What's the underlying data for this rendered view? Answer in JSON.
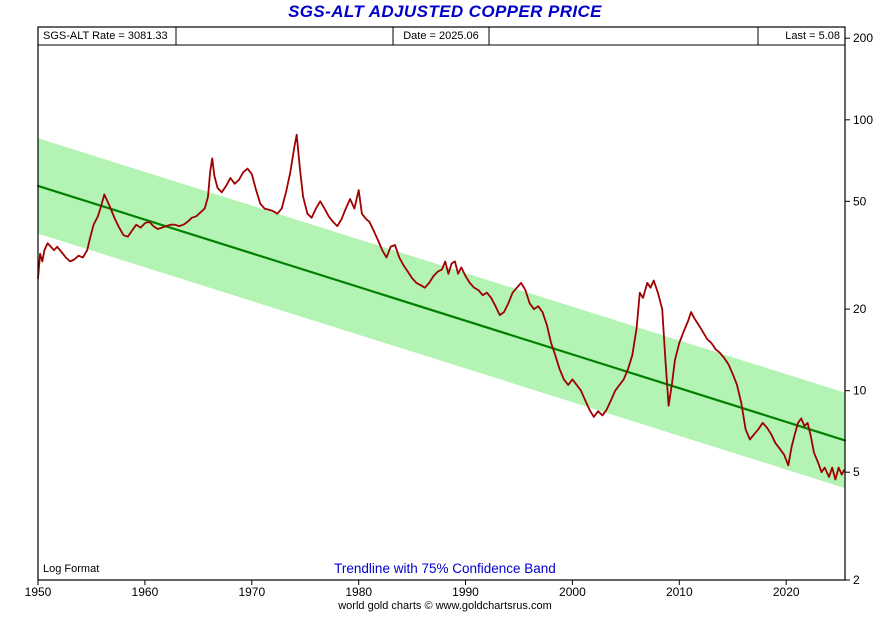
{
  "title": "SGS-ALT ADJUSTED COPPER PRICE",
  "header": {
    "left": "SGS-ALT Rate = 3081.33",
    "center": "Date = 2025.06",
    "right": "Last = 5.08"
  },
  "labels": {
    "log_format": "Log Format",
    "trendline_caption": "Trendline with 75% Confidence Band"
  },
  "footer": {
    "note": "world gold charts © www.goldchartsrus.com"
  },
  "colors": {
    "title": "#0000cc",
    "caption": "#0000cc",
    "price": "#a00000",
    "trend": "#008000",
    "band": "#b3f3b3",
    "axis": "#000000"
  },
  "chart_data": {
    "type": "line",
    "title": "SGS-ALT ADJUSTED COPPER PRICE",
    "xlabel": "",
    "ylabel": "",
    "y_scale": "log",
    "grid": false,
    "xlim": [
      1950,
      2025.5
    ],
    "ylim": [
      2,
      220
    ],
    "x_ticks": [
      1950,
      1960,
      1970,
      1980,
      1990,
      2000,
      2010,
      2020
    ],
    "y_ticks": [
      2,
      5,
      10,
      20,
      50,
      100,
      200
    ],
    "band": {
      "id": "confidence-band",
      "name": "75% Confidence Band",
      "color": "#b3f3b3",
      "ratio": 1.5,
      "points": [
        [
          1950,
          57
        ],
        [
          2025.5,
          6.55
        ]
      ]
    },
    "series": [
      {
        "id": "trendline",
        "name": "Trendline",
        "color": "#008000",
        "width": 2.2,
        "points": [
          [
            1950,
            57
          ],
          [
            2025.5,
            6.55
          ]
        ]
      },
      {
        "id": "price-line",
        "name": "SGS-ALT Adjusted Copper Price",
        "color": "#a00000",
        "width": 1.8,
        "points": [
          [
            1950,
            26
          ],
          [
            1950.2,
            32
          ],
          [
            1950.4,
            30
          ],
          [
            1950.6,
            33
          ],
          [
            1950.9,
            35
          ],
          [
            1951.2,
            34
          ],
          [
            1951.5,
            33
          ],
          [
            1951.8,
            34
          ],
          [
            1952.2,
            32.5
          ],
          [
            1952.6,
            31
          ],
          [
            1953,
            30
          ],
          [
            1953.4,
            30.5
          ],
          [
            1953.8,
            31.5
          ],
          [
            1954.2,
            31
          ],
          [
            1954.6,
            33
          ],
          [
            1954.9,
            37
          ],
          [
            1955.2,
            41
          ],
          [
            1955.6,
            44
          ],
          [
            1955.9,
            48
          ],
          [
            1956.2,
            53
          ],
          [
            1956.5,
            50
          ],
          [
            1956.8,
            47
          ],
          [
            1957.2,
            43
          ],
          [
            1957.6,
            40
          ],
          [
            1958,
            37.5
          ],
          [
            1958.4,
            37
          ],
          [
            1958.8,
            39
          ],
          [
            1959.2,
            41
          ],
          [
            1959.6,
            40
          ],
          [
            1960,
            41.5
          ],
          [
            1960.4,
            42
          ],
          [
            1960.8,
            40.5
          ],
          [
            1961.2,
            39.5
          ],
          [
            1961.6,
            40
          ],
          [
            1962,
            40.5
          ],
          [
            1962.4,
            41
          ],
          [
            1962.8,
            41
          ],
          [
            1963.2,
            40.5
          ],
          [
            1963.6,
            41
          ],
          [
            1964,
            42
          ],
          [
            1964.4,
            43.5
          ],
          [
            1964.8,
            44
          ],
          [
            1965.2,
            45.5
          ],
          [
            1965.6,
            47
          ],
          [
            1965.9,
            52
          ],
          [
            1966.1,
            64
          ],
          [
            1966.3,
            72
          ],
          [
            1966.5,
            62
          ],
          [
            1966.8,
            56
          ],
          [
            1967.2,
            54
          ],
          [
            1967.6,
            57
          ],
          [
            1968,
            61
          ],
          [
            1968.4,
            58
          ],
          [
            1968.8,
            60
          ],
          [
            1969.2,
            64
          ],
          [
            1969.6,
            66
          ],
          [
            1970,
            63
          ],
          [
            1970.4,
            55
          ],
          [
            1970.8,
            49
          ],
          [
            1971.2,
            47
          ],
          [
            1971.6,
            46.5
          ],
          [
            1972,
            46
          ],
          [
            1972.4,
            45
          ],
          [
            1972.8,
            47
          ],
          [
            1973.2,
            54
          ],
          [
            1973.6,
            64
          ],
          [
            1974,
            80
          ],
          [
            1974.2,
            88
          ],
          [
            1974.5,
            66
          ],
          [
            1974.8,
            52
          ],
          [
            1975.2,
            45
          ],
          [
            1975.6,
            43.5
          ],
          [
            1976,
            47
          ],
          [
            1976.4,
            50
          ],
          [
            1976.8,
            47
          ],
          [
            1977.2,
            44
          ],
          [
            1977.6,
            42
          ],
          [
            1978,
            40.5
          ],
          [
            1978.4,
            43
          ],
          [
            1978.8,
            47
          ],
          [
            1979.2,
            51
          ],
          [
            1979.6,
            47
          ],
          [
            1980,
            55
          ],
          [
            1980.3,
            45
          ],
          [
            1980.7,
            43
          ],
          [
            1981,
            42
          ],
          [
            1981.4,
            39
          ],
          [
            1981.8,
            36
          ],
          [
            1982.2,
            33
          ],
          [
            1982.6,
            31
          ],
          [
            1983,
            34
          ],
          [
            1983.4,
            34.5
          ],
          [
            1983.8,
            31
          ],
          [
            1984.2,
            29
          ],
          [
            1984.6,
            27.5
          ],
          [
            1985,
            26
          ],
          [
            1985.4,
            25
          ],
          [
            1985.8,
            24.5
          ],
          [
            1986.2,
            24
          ],
          [
            1986.6,
            25
          ],
          [
            1987,
            26.5
          ],
          [
            1987.4,
            27.5
          ],
          [
            1987.8,
            28
          ],
          [
            1988.1,
            30
          ],
          [
            1988.4,
            27
          ],
          [
            1988.7,
            29.5
          ],
          [
            1989,
            30
          ],
          [
            1989.3,
            27
          ],
          [
            1989.6,
            28.5
          ],
          [
            1990,
            26.5
          ],
          [
            1990.4,
            25
          ],
          [
            1990.8,
            24
          ],
          [
            1991.2,
            23.5
          ],
          [
            1991.6,
            22.5
          ],
          [
            1992,
            23
          ],
          [
            1992.4,
            22
          ],
          [
            1992.8,
            20.5
          ],
          [
            1993.2,
            19
          ],
          [
            1993.6,
            19.5
          ],
          [
            1994,
            21
          ],
          [
            1994.4,
            23
          ],
          [
            1994.8,
            24
          ],
          [
            1995.2,
            25
          ],
          [
            1995.6,
            23.5
          ],
          [
            1996,
            21
          ],
          [
            1996.4,
            20
          ],
          [
            1996.8,
            20.5
          ],
          [
            1997.2,
            19.5
          ],
          [
            1997.6,
            17.5
          ],
          [
            1998,
            15
          ],
          [
            1998.4,
            13.5
          ],
          [
            1998.8,
            12
          ],
          [
            1999.2,
            11
          ],
          [
            1999.6,
            10.5
          ],
          [
            2000,
            11
          ],
          [
            2000.4,
            10.5
          ],
          [
            2000.8,
            10
          ],
          [
            2001.2,
            9.2
          ],
          [
            2001.6,
            8.5
          ],
          [
            2002,
            8
          ],
          [
            2002.4,
            8.4
          ],
          [
            2002.8,
            8.1
          ],
          [
            2003.2,
            8.5
          ],
          [
            2003.6,
            9.2
          ],
          [
            2004,
            10
          ],
          [
            2004.4,
            10.5
          ],
          [
            2004.8,
            11
          ],
          [
            2005.2,
            12
          ],
          [
            2005.6,
            13.5
          ],
          [
            2006,
            17
          ],
          [
            2006.3,
            23
          ],
          [
            2006.6,
            22
          ],
          [
            2007,
            25
          ],
          [
            2007.3,
            24
          ],
          [
            2007.6,
            25.5
          ],
          [
            2008,
            23
          ],
          [
            2008.4,
            20
          ],
          [
            2008.7,
            13
          ],
          [
            2009,
            8.8
          ],
          [
            2009.3,
            10.5
          ],
          [
            2009.6,
            13
          ],
          [
            2010,
            15
          ],
          [
            2010.4,
            16.5
          ],
          [
            2010.8,
            18
          ],
          [
            2011.1,
            19.5
          ],
          [
            2011.4,
            18.5
          ],
          [
            2011.8,
            17.5
          ],
          [
            2012.2,
            16.5
          ],
          [
            2012.6,
            15.5
          ],
          [
            2013,
            15
          ],
          [
            2013.4,
            14.2
          ],
          [
            2013.8,
            13.8
          ],
          [
            2014.2,
            13.2
          ],
          [
            2014.6,
            12.5
          ],
          [
            2015,
            11.5
          ],
          [
            2015.4,
            10.5
          ],
          [
            2015.8,
            9
          ],
          [
            2016.2,
            7.2
          ],
          [
            2016.6,
            6.6
          ],
          [
            2017,
            6.9
          ],
          [
            2017.4,
            7.2
          ],
          [
            2017.8,
            7.6
          ],
          [
            2018.2,
            7.3
          ],
          [
            2018.6,
            6.9
          ],
          [
            2019,
            6.4
          ],
          [
            2019.4,
            6.1
          ],
          [
            2019.8,
            5.8
          ],
          [
            2020.2,
            5.3
          ],
          [
            2020.5,
            6.2
          ],
          [
            2020.8,
            6.9
          ],
          [
            2021.1,
            7.6
          ],
          [
            2021.4,
            7.9
          ],
          [
            2021.7,
            7.4
          ],
          [
            2022,
            7.6
          ],
          [
            2022.3,
            6.8
          ],
          [
            2022.6,
            5.9
          ],
          [
            2023,
            5.4
          ],
          [
            2023.3,
            5
          ],
          [
            2023.6,
            5.2
          ],
          [
            2024,
            4.8
          ],
          [
            2024.3,
            5.2
          ],
          [
            2024.6,
            4.7
          ],
          [
            2024.9,
            5.2
          ],
          [
            2025.2,
            4.9
          ],
          [
            2025.4,
            5.08
          ]
        ]
      }
    ]
  }
}
